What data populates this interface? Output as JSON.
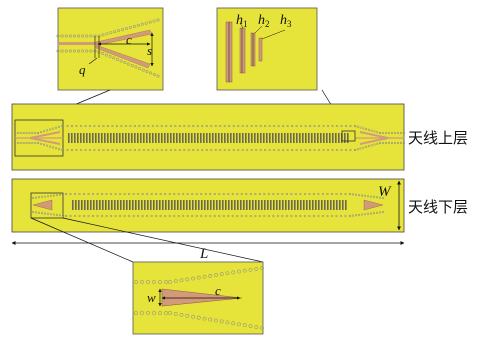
{
  "top_layer_label": "天线上层",
  "bottom_layer_label": "天线下层",
  "dimension_symbols": {
    "length": "L",
    "width": "W",
    "top_taper_length": "c",
    "top_taper_gap": "q",
    "top_taper_opening": "s",
    "h_symbol": "h",
    "h1_subscript": "1",
    "h2_subscript": "2",
    "h3_subscript": "3",
    "bottom_taper_width": "w",
    "bottom_taper_length": "c"
  },
  "colors": {
    "substrate": "#e6e43a",
    "copper_strip": "#d39a7a",
    "via_row": "#9a9a7a",
    "outline": "#333333"
  }
}
